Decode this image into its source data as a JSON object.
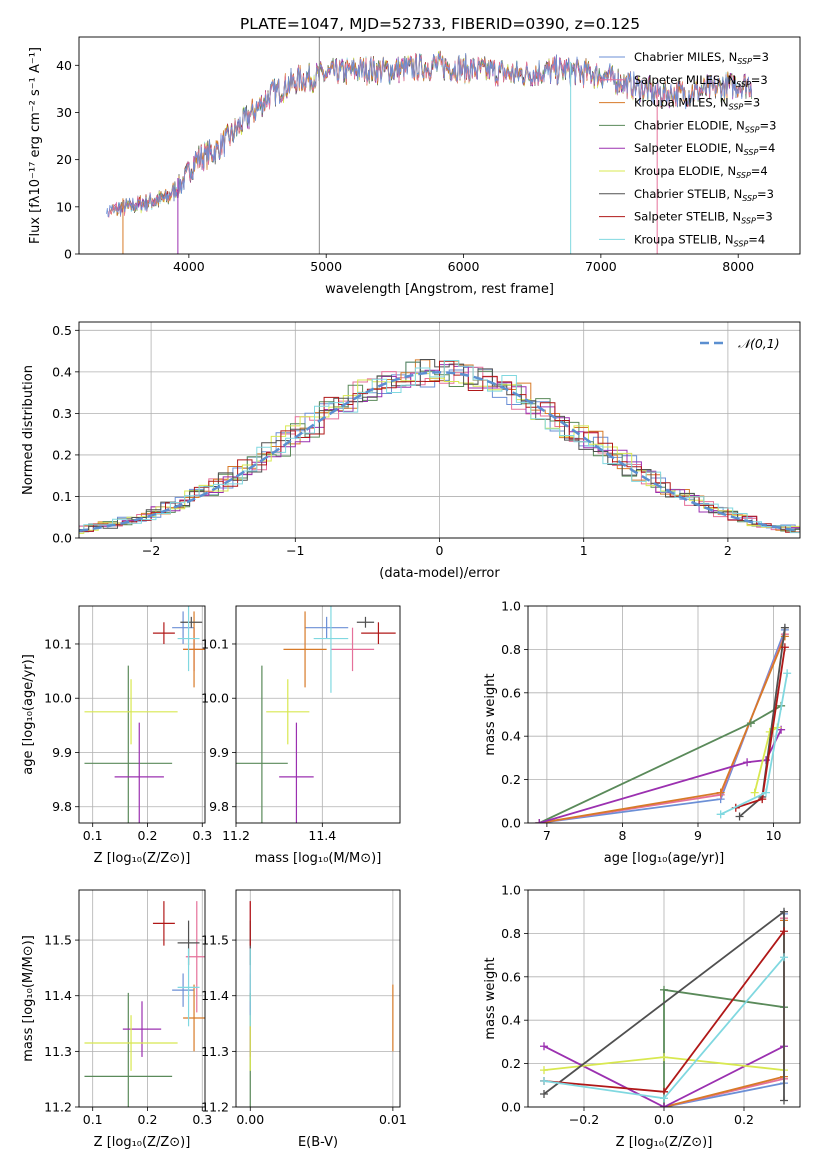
{
  "figure_title": "PLATE=1047, MJD=52733, FIBERID=0390, z=0.125",
  "colors": [
    "#6b8fd6",
    "#e5719a",
    "#d77a28",
    "#5a8a5a",
    "#9b30b0",
    "#d8e850",
    "#505050",
    "#b01818",
    "#80d8e0"
  ],
  "chart_data": [
    {
      "id": "spectrum",
      "type": "line",
      "xlabel": "wavelength [Angstrom, rest frame]",
      "ylabel": "Flux [fλ10⁻¹⁷ erg cm⁻² s⁻¹ A⁻¹]",
      "xlim": [
        3200,
        8450
      ],
      "ylim": [
        0,
        46
      ],
      "xticks": [
        4000,
        5000,
        6000,
        7000,
        8000
      ],
      "yticks": [
        0,
        10,
        20,
        30,
        40
      ],
      "legend": [
        "Chabrier MILES, N_SSP=3",
        "Salpeter MILES, N_SSP=3",
        "Kroupa MILES, N_SSP=3",
        "Chabrier ELODIE, N_SSP=3",
        "Salpeter ELODIE, N_SSP=4",
        "Kroupa ELODIE, N_SSP=4",
        "Chabrier STELIB, N_SSP=3",
        "Salpeter STELIB, N_SSP=3",
        "Kroupa STELIB, N_SSP=4"
      ],
      "legend_position": "upper-right",
      "continuum": {
        "x": [
          3400,
          3550,
          3700,
          3850,
          3950,
          4050,
          4200,
          4400,
          4600,
          4800,
          5000,
          5200,
          5500,
          5800,
          6100,
          6400,
          6700,
          7000,
          7200,
          7400,
          7600,
          7800,
          8000,
          8200
        ],
        "y": [
          9,
          10,
          11,
          12,
          15,
          20,
          22,
          28,
          34,
          37,
          38,
          39,
          39,
          40,
          39,
          38,
          39,
          38,
          36,
          34,
          34,
          35,
          36,
          36
        ]
      },
      "model_x_range": [
        3500,
        7400
      ],
      "spikes": [
        {
          "x": 3520,
          "y_min": 0
        },
        {
          "x": 3920,
          "y_min": 0
        },
        {
          "x": 4950,
          "y_min": 0,
          "y_max": 46
        },
        {
          "x": 6780,
          "y_min": 0
        },
        {
          "x": 7410,
          "y_min": 0
        }
      ]
    },
    {
      "id": "residuals",
      "type": "histogram",
      "xlabel": "(data-model)/error",
      "ylabel": "Normed distribution",
      "xlim": [
        -2.5,
        2.5
      ],
      "ylim": [
        0,
        0.52
      ],
      "xticks": [
        -2,
        -1,
        0,
        1,
        2
      ],
      "yticks": [
        0,
        0.1,
        0.2,
        0.3,
        0.4,
        0.5
      ],
      "legend": [
        "𝒩(0,1)"
      ],
      "legend_position": "upper-right",
      "bin_width": 0.1
    },
    {
      "id": "age_vs_Z",
      "type": "scatter",
      "xlabel": "Z [log₁₀(Z/Z⊙)]",
      "ylabel": "age  [log₁₀(age/yr)]",
      "xlim": [
        0.075,
        0.305
      ],
      "ylim": [
        9.77,
        10.17
      ],
      "xticks": [
        0.1,
        0.2,
        0.3
      ],
      "yticks": [
        9.8,
        9.9,
        10.0,
        10.1
      ],
      "points": [
        {
          "series": 0,
          "x": 0.265,
          "y": 10.13,
          "xerr": 0.02,
          "yerr": 0.03
        },
        {
          "series": 1,
          "x": 0.285,
          "y": 10.09,
          "xerr": 0.02,
          "yerr": 0.04
        },
        {
          "series": 2,
          "x": 0.285,
          "y": 10.09,
          "xerr": 0.02,
          "yerr": 0.07
        },
        {
          "series": 3,
          "x": 0.165,
          "y": 9.88,
          "xerr": 0.08,
          "yerr": 0.18
        },
        {
          "series": 4,
          "x": 0.185,
          "y": 9.855,
          "xerr": 0.045,
          "yerr": 0.1
        },
        {
          "series": 5,
          "x": 0.17,
          "y": 9.975,
          "xerr": 0.085,
          "yerr": 0.06
        },
        {
          "series": 6,
          "x": 0.28,
          "y": 10.14,
          "xerr": 0.02,
          "yerr": 0.01
        },
        {
          "series": 7,
          "x": 0.23,
          "y": 10.12,
          "xerr": 0.02,
          "yerr": 0.02
        },
        {
          "series": 8,
          "x": 0.275,
          "y": 10.11,
          "xerr": 0.02,
          "yerr": 0.06
        }
      ]
    },
    {
      "id": "age_vs_mass",
      "type": "scatter",
      "xlabel": "mass [log₁₀(M/M⊙)]",
      "ylabel": "",
      "xlim": [
        11.2,
        11.58
      ],
      "ylim": [
        9.77,
        10.17
      ],
      "xticks": [
        11.2,
        11.4
      ],
      "yticks": [
        9.8,
        9.9,
        10.0,
        10.1
      ],
      "points": [
        {
          "series": 0,
          "x": 11.41,
          "y": 10.13,
          "xerr": 0.05,
          "yerr": 0.02
        },
        {
          "series": 1,
          "x": 11.47,
          "y": 10.09,
          "xerr": 0.05,
          "yerr": 0.04
        },
        {
          "series": 2,
          "x": 11.36,
          "y": 10.09,
          "xerr": 0.05,
          "yerr": 0.07
        },
        {
          "series": 3,
          "x": 11.26,
          "y": 9.88,
          "xerr": 0.06,
          "yerr": 0.18
        },
        {
          "series": 4,
          "x": 11.34,
          "y": 9.855,
          "xerr": 0.04,
          "yerr": 0.1
        },
        {
          "series": 5,
          "x": 11.32,
          "y": 9.975,
          "xerr": 0.05,
          "yerr": 0.06
        },
        {
          "series": 6,
          "x": 11.5,
          "y": 10.14,
          "xerr": 0.02,
          "yerr": 0.01
        },
        {
          "series": 7,
          "x": 11.53,
          "y": 10.12,
          "xerr": 0.04,
          "yerr": 0.02
        },
        {
          "series": 8,
          "x": 11.42,
          "y": 10.11,
          "xerr": 0.04,
          "yerr": 0.1
        }
      ]
    },
    {
      "id": "weight_vs_age",
      "type": "line",
      "xlabel": "age  [log₁₀(age/yr)]",
      "ylabel": "mass weight",
      "xlim": [
        6.75,
        10.35
      ],
      "ylim": [
        0,
        1.0
      ],
      "xticks": [
        7,
        8,
        9,
        10
      ],
      "yticks": [
        0,
        0.2,
        0.4,
        0.6,
        0.8,
        1.0
      ],
      "series": [
        {
          "x": [
            6.9,
            9.3,
            10.15
          ],
          "y": [
            0.0,
            0.11,
            0.89
          ]
        },
        {
          "x": [
            6.9,
            9.3,
            10.15
          ],
          "y": [
            0.0,
            0.13,
            0.87
          ]
        },
        {
          "x": [
            6.9,
            9.3,
            10.15
          ],
          "y": [
            0.0,
            0.14,
            0.86
          ]
        },
        {
          "x": [
            6.9,
            9.7,
            10.1
          ],
          "y": [
            0.0,
            0.46,
            0.54
          ]
        },
        {
          "x": [
            6.9,
            9.65,
            9.9,
            10.1
          ],
          "y": [
            0.0,
            0.28,
            0.29,
            0.43
          ]
        },
        {
          "x": [
            9.75,
            9.95,
            10.05
          ],
          "y": [
            0.14,
            0.42,
            0.44
          ]
        },
        {
          "x": [
            9.55,
            9.85,
            10.15
          ],
          "y": [
            0.03,
            0.12,
            0.9
          ]
        },
        {
          "x": [
            9.5,
            9.85,
            10.15
          ],
          "y": [
            0.07,
            0.11,
            0.81
          ]
        },
        {
          "x": [
            9.3,
            9.9,
            10.18
          ],
          "y": [
            0.04,
            0.14,
            0.69
          ]
        }
      ]
    },
    {
      "id": "mass_vs_Z",
      "type": "scatter",
      "xlabel": "Z [log₁₀(Z/Z⊙)]",
      "ylabel": "mass [log₁₀(M/M⊙)]",
      "xlim": [
        0.075,
        0.305
      ],
      "ylim": [
        11.2,
        11.59
      ],
      "xticks": [
        0.1,
        0.2,
        0.3
      ],
      "yticks": [
        11.2,
        11.3,
        11.4,
        11.5
      ],
      "points": [
        {
          "series": 0,
          "x": 0.265,
          "y": 11.41,
          "xerr": 0.02,
          "yerr": 0.03
        },
        {
          "series": 1,
          "x": 0.29,
          "y": 11.47,
          "xerr": 0.02,
          "yerr": 0.1
        },
        {
          "series": 2,
          "x": 0.285,
          "y": 11.36,
          "xerr": 0.02,
          "yerr": 0.06
        },
        {
          "series": 3,
          "x": 0.165,
          "y": 11.255,
          "xerr": 0.08,
          "yerr": 0.15
        },
        {
          "series": 4,
          "x": 0.19,
          "y": 11.34,
          "xerr": 0.035,
          "yerr": 0.05
        },
        {
          "series": 5,
          "x": 0.17,
          "y": 11.315,
          "xerr": 0.085,
          "yerr": 0.05
        },
        {
          "series": 6,
          "x": 0.275,
          "y": 11.495,
          "xerr": 0.02,
          "yerr": 0.04
        },
        {
          "series": 7,
          "x": 0.23,
          "y": 11.53,
          "xerr": 0.02,
          "yerr": 0.04
        },
        {
          "series": 8,
          "x": 0.275,
          "y": 11.415,
          "xerr": 0.02,
          "yerr": 0.07
        }
      ]
    },
    {
      "id": "mass_vs_ebv",
      "type": "scatter",
      "xlabel": "E(B-V)",
      "ylabel": "",
      "xlim": [
        -0.001,
        0.0105
      ],
      "ylim": [
        11.2,
        11.59
      ],
      "xticks": [
        0.0,
        0.01
      ],
      "yticks": [
        11.2,
        11.3,
        11.4,
        11.5
      ],
      "points": [
        {
          "series": 0,
          "x": 0.0,
          "y": 11.41,
          "xerr": 0,
          "yerr": 0.03
        },
        {
          "series": 1,
          "x": 0.0,
          "y": 11.47,
          "xerr": 0,
          "yerr": 0.1
        },
        {
          "series": 2,
          "x": 0.01,
          "y": 11.36,
          "xerr": 0,
          "yerr": 0.06
        },
        {
          "series": 3,
          "x": 0.0,
          "y": 11.255,
          "xerr": 0,
          "yerr": 0.15
        },
        {
          "series": 4,
          "x": 0.0,
          "y": 11.34,
          "xerr": 0,
          "yerr": 0.05
        },
        {
          "series": 5,
          "x": 0.0,
          "y": 11.315,
          "xerr": 0,
          "yerr": 0.05
        },
        {
          "series": 6,
          "x": 0.0,
          "y": 11.495,
          "xerr": 0,
          "yerr": 0.04
        },
        {
          "series": 7,
          "x": 0.0,
          "y": 11.53,
          "xerr": 0,
          "yerr": 0.04
        },
        {
          "series": 8,
          "x": 0.0,
          "y": 11.415,
          "xerr": 0,
          "yerr": 0.07
        }
      ]
    },
    {
      "id": "weight_vs_Z",
      "type": "line",
      "xlabel": "Z [log₁₀(Z/Z⊙)]",
      "ylabel": "mass weight",
      "xlim": [
        -0.34,
        0.34
      ],
      "ylim": [
        0,
        1.0
      ],
      "xticks": [
        -0.2,
        0.0,
        0.2
      ],
      "yticks": [
        0,
        0.2,
        0.4,
        0.6,
        0.8,
        1.0
      ],
      "series": [
        {
          "x": [
            0.0,
            0.3,
            0.3
          ],
          "y": [
            0.0,
            0.11,
            0.89
          ]
        },
        {
          "x": [
            0.0,
            0.3,
            0.3
          ],
          "y": [
            0.0,
            0.13,
            0.87
          ]
        },
        {
          "x": [
            0.0,
            0.3,
            0.3
          ],
          "y": [
            0.0,
            0.14,
            0.86
          ]
        },
        {
          "x": [
            0.0,
            0.0,
            0.3
          ],
          "y": [
            0.0,
            0.54,
            0.46
          ]
        },
        {
          "x": [
            -0.3,
            0.0,
            0.3
          ],
          "y": [
            0.28,
            0.0,
            0.28
          ]
        },
        {
          "x": [
            -0.3,
            0.0,
            0.3
          ],
          "y": [
            0.17,
            0.23,
            0.17
          ]
        },
        {
          "x": [
            -0.3,
            0.3,
            0.3
          ],
          "y": [
            0.06,
            0.9,
            0.03
          ]
        },
        {
          "x": [
            -0.3,
            0.0,
            0.3
          ],
          "y": [
            0.12,
            0.07,
            0.81
          ]
        },
        {
          "x": [
            -0.3,
            0.0,
            0.3
          ],
          "y": [
            0.12,
            0.04,
            0.69
          ]
        }
      ]
    }
  ]
}
